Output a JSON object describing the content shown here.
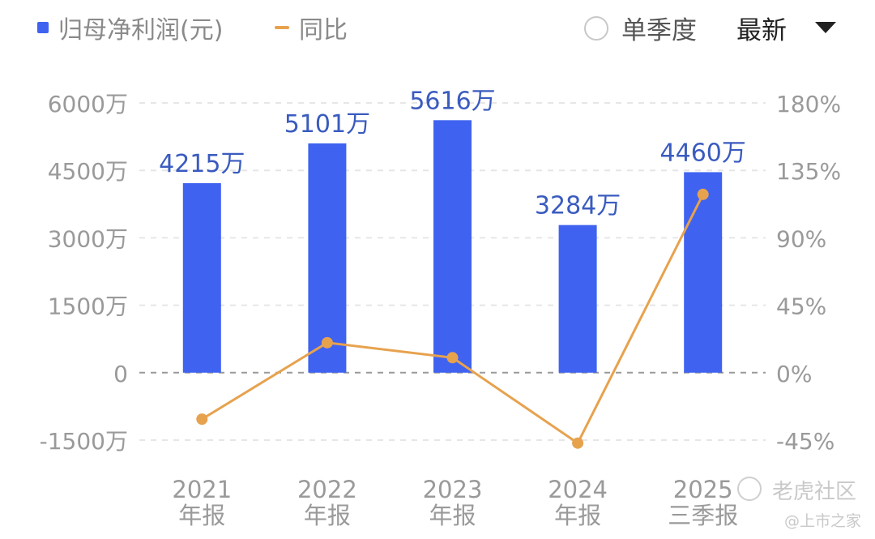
{
  "legend": {
    "bar_label": "归母净利润(元)",
    "line_label": "同比",
    "single_quarter_label": "单季度",
    "latest_label": "最新"
  },
  "colors": {
    "bar": "#3F63F0",
    "line": "#E7A24E",
    "bar_label": "#3A5BBF",
    "axis_text": "#9a9a9a",
    "grid": "#e6e6e6"
  },
  "watermark": {
    "main": "老虎社区",
    "sub": "@上市之家"
  },
  "chart_data": {
    "type": "bar",
    "categories": [
      [
        "2021",
        "年报"
      ],
      [
        "2022",
        "年报"
      ],
      [
        "2023",
        "年报"
      ],
      [
        "2024",
        "年报"
      ],
      [
        "2025",
        "三季报"
      ]
    ],
    "series": [
      {
        "values": [
          4215,
          5101,
          5616,
          3284,
          4460
        ],
        "value_labels": [
          "4215万",
          "5101万",
          "5616万",
          "3284万",
          "4460万"
        ],
        "axis": "left",
        "kind": "bar"
      },
      {
        "values": [
          -31,
          20,
          10,
          -47,
          119
        ],
        "axis": "right",
        "kind": "line"
      }
    ],
    "y_left": {
      "ticks": [
        6000,
        4500,
        3000,
        1500,
        0,
        -1500
      ],
      "tick_labels": [
        "6000万",
        "4500万",
        "3000万",
        "1500万",
        "0",
        "-1500万"
      ],
      "ylim": [
        -1500,
        6000
      ]
    },
    "y_right": {
      "ticks": [
        180,
        135,
        90,
        45,
        0,
        -45
      ],
      "tick_labels": [
        "180%",
        "135%",
        "90%",
        "45%",
        "0%",
        "-45%"
      ],
      "ylim": [
        -45,
        180
      ]
    },
    "grid": true
  }
}
